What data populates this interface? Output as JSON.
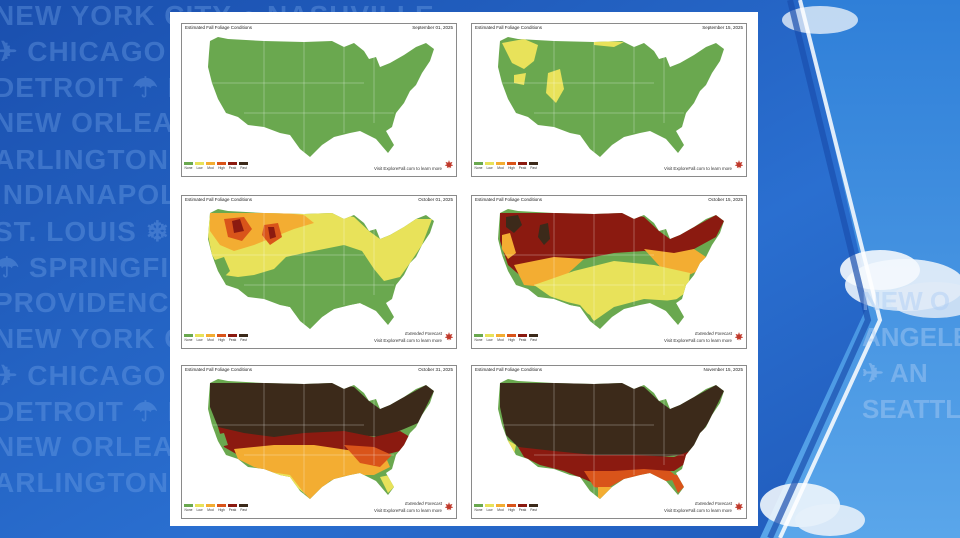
{
  "background": {
    "city_rows": [
      "NEW YORK CITY ● NASHVILLE",
      "✈ CHICAGO ● BOSTON",
      "DETROIT ☂ BALTIMORE",
      "NEW ORLEANS",
      "ARLINGTON ☂ DENVER",
      "INDIANAPOLIS",
      "ST. LOUIS ❄ ANAHEIM",
      "☂ SPRINGFIELD ●",
      "PROVIDENCE ● SEATTLE",
      "NEW YORK CITY ●",
      "✈ CHICAGO ●",
      "DETROIT ☂ BA",
      "NEW ORLEAN",
      "ARLINGTON"
    ],
    "right_rows": [
      "NEW O",
      "ANGELES",
      "✈ AN",
      "SEATTLE"
    ]
  },
  "panel_title": "Estimated Fall Foliage Conditions",
  "extended_label": "Extended Forecast",
  "visit_text": "Visit ExploreFall.com to learn more",
  "legend": [
    {
      "label": "None",
      "color": "#6aa84f"
    },
    {
      "label": "Low",
      "color": "#e8e25a"
    },
    {
      "label": "Mod",
      "color": "#f3ad32"
    },
    {
      "label": "High",
      "color": "#d9541a"
    },
    {
      "label": "Peak",
      "color": "#8b1a10"
    },
    {
      "label": "Past",
      "color": "#3c2a1a"
    }
  ],
  "panels": [
    {
      "date": "September 01, 2025",
      "extended": false
    },
    {
      "date": "September 15, 2025",
      "extended": false
    },
    {
      "date": "October 01, 2025",
      "extended": true
    },
    {
      "date": "October 15, 2025",
      "extended": true
    },
    {
      "date": "October 31, 2025",
      "extended": true
    },
    {
      "date": "November 15, 2025",
      "extended": true
    }
  ],
  "colors": {
    "background_blue": "#1f5fbf",
    "sky": "#3d8fe0",
    "leaf": "#c0392b"
  }
}
